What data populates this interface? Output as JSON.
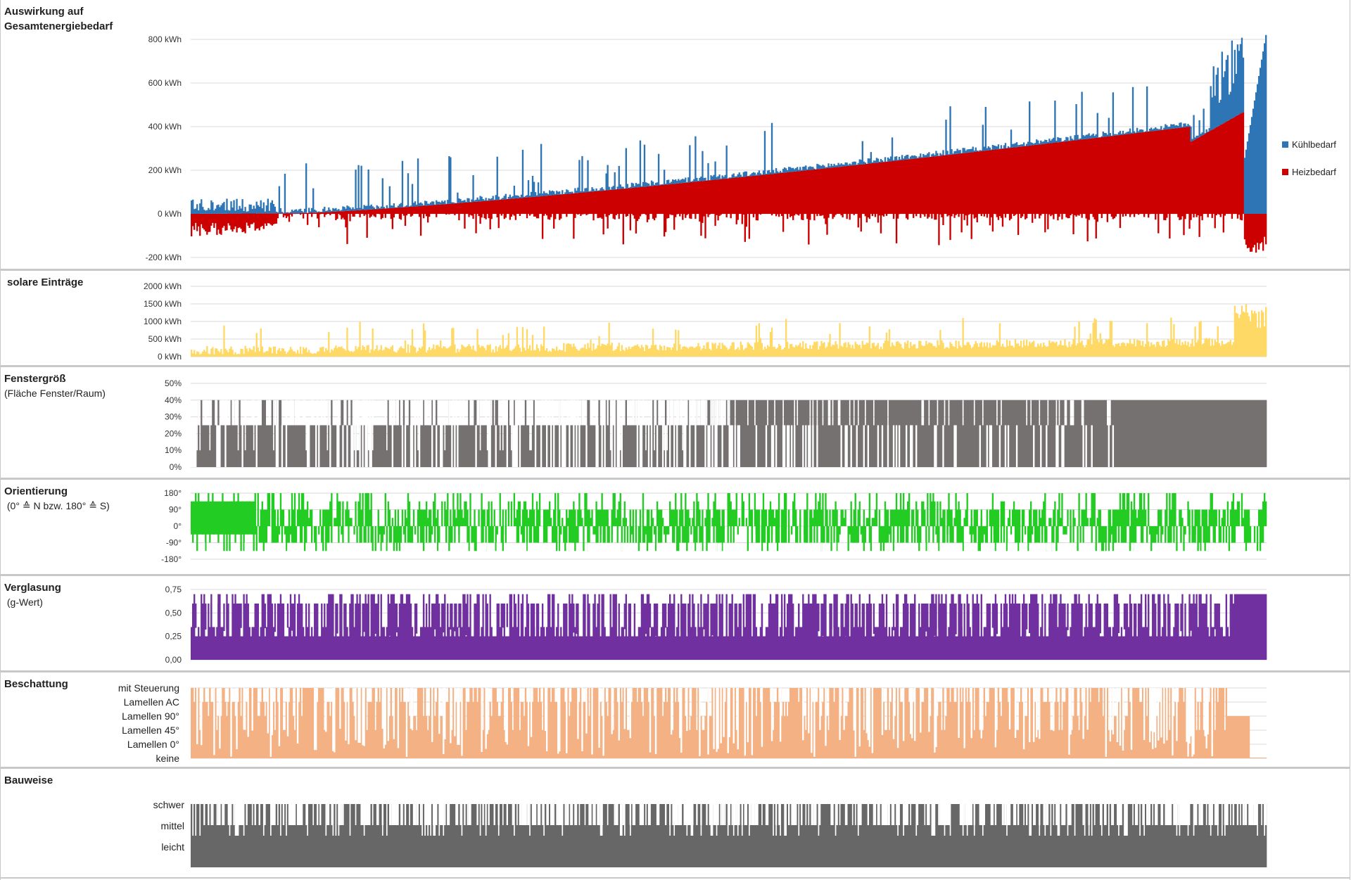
{
  "colors": {
    "heat": "#cc0000",
    "cool": "#2e75b6",
    "solar": "#ffd966",
    "window": "#767171",
    "orient": "#22cc22",
    "glass": "#7030a0",
    "shade": "#f4b183",
    "build": "#676767",
    "grid": "#d9d9d9"
  },
  "legend": [
    {
      "label": "Kühlbedarf",
      "color": "#2e75b6"
    },
    {
      "label": "Heizbedarf",
      "color": "#cc0000"
    }
  ],
  "panels": [
    {
      "title": "Auswirkung auf\nGesamtenergiebedarf",
      "subtitle": ""
    },
    {
      "title": "solare Einträge",
      "subtitle": ""
    },
    {
      "title": "Fenstergröß",
      "subtitle": "(Fläche Fenster/Raum)"
    },
    {
      "title": "Orientierung",
      "subtitle": " (0° ≙ N bzw. 180° ≙ S)"
    },
    {
      "title": "Verglasung",
      "subtitle": " (g-Wert)"
    },
    {
      "title": "Beschattung",
      "subtitle": ""
    },
    {
      "title": "Bauweise",
      "subtitle": ""
    }
  ],
  "chart_data": [
    {
      "type": "bar",
      "name": "Auswirkung auf Gesamtenergiebedarf",
      "series": [
        {
          "name": "Kühlbedarf"
        },
        {
          "name": "Heizbedarf"
        }
      ],
      "y_ticks": [
        -200,
        0,
        200,
        400,
        600,
        800
      ],
      "y_tick_labels": [
        "-200 kWh",
        "0 kWh",
        "200 kWh",
        "400 kWh",
        "600 kWh",
        "800 kWh"
      ],
      "ylim": [
        -200,
        800
      ],
      "n_samples": 1400,
      "description_points": {
        "heat_start": 0,
        "heat_end": 470,
        "cool_end_max": 820,
        "heat_negative_min": -200
      }
    },
    {
      "type": "bar",
      "name": "solare Einträge",
      "y_ticks": [
        0,
        500,
        1000,
        1500,
        2000
      ],
      "y_tick_labels": [
        "0 kWh",
        "500 kWh",
        "1000 kWh",
        "1500 kWh",
        "2000 kWh"
      ],
      "ylim": [
        0,
        2000
      ]
    },
    {
      "type": "bar",
      "name": "Fenstergröß",
      "y_ticks": [
        0,
        10,
        20,
        30,
        40,
        50
      ],
      "y_tick_labels": [
        "0%",
        "10%",
        "20%",
        "30%",
        "40%",
        "50%"
      ],
      "ylim": [
        0,
        50
      ],
      "levels": [
        25,
        40
      ]
    },
    {
      "type": "bar",
      "name": "Orientierung",
      "y_ticks": [
        -180,
        -90,
        0,
        90,
        180
      ],
      "y_tick_labels": [
        "-180°",
        "-90°",
        "0°",
        "90°",
        "180°"
      ],
      "ylim": [
        -180,
        180
      ],
      "levels": [
        -135,
        -90,
        -45,
        0,
        45,
        90,
        135,
        180
      ]
    },
    {
      "type": "bar",
      "name": "Verglasung",
      "y_ticks": [
        0,
        0.25,
        0.5,
        0.75
      ],
      "y_tick_labels": [
        "0,00",
        "0,25",
        "0,50",
        "0,75"
      ],
      "ylim": [
        0,
        0.75
      ],
      "levels": [
        0.25,
        0.35,
        0.6,
        0.7
      ]
    },
    {
      "type": "bar",
      "name": "Beschattung",
      "categories": [
        "keine",
        "Lamellen 0°",
        "Lamellen 45°",
        "Lamellen 90°",
        "Lamellen AC",
        "mit Steuerung"
      ]
    },
    {
      "type": "bar",
      "name": "Bauweise",
      "categories": [
        "leicht",
        "mittel",
        "schwer"
      ]
    }
  ]
}
